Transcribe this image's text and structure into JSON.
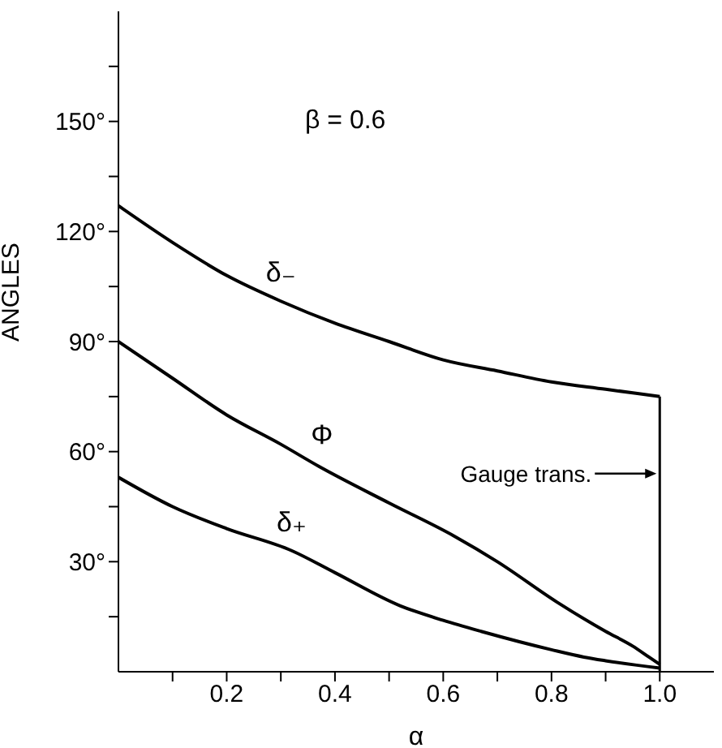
{
  "chart_data": {
    "type": "line",
    "xlabel": "α",
    "ylabel": "ANGLES",
    "xlim": [
      0,
      1.1
    ],
    "xticks": [
      {
        "value": 0.1,
        "label": null
      },
      {
        "value": 0.2,
        "label": "0.2"
      },
      {
        "value": 0.3,
        "label": null
      },
      {
        "value": 0.4,
        "label": "0.4"
      },
      {
        "value": 0.5,
        "label": null
      },
      {
        "value": 0.6,
        "label": "0.6"
      },
      {
        "value": 0.7,
        "label": null
      },
      {
        "value": 0.8,
        "label": "0.8"
      },
      {
        "value": 0.9,
        "label": null
      },
      {
        "value": 1.0,
        "label": "1.0"
      }
    ],
    "ylim": [
      0,
      180
    ],
    "yticks": [
      {
        "value": 15,
        "label": null
      },
      {
        "value": 30,
        "label": "30°"
      },
      {
        "value": 45,
        "label": null
      },
      {
        "value": 60,
        "label": "60°"
      },
      {
        "value": 75,
        "label": null
      },
      {
        "value": 90,
        "label": "90°"
      },
      {
        "value": 105,
        "label": null
      },
      {
        "value": 120,
        "label": "120°"
      },
      {
        "value": 135,
        "label": null
      },
      {
        "value": 150,
        "label": "150°"
      },
      {
        "value": 165,
        "label": null
      }
    ],
    "grid": false,
    "legend": false,
    "marker": "none",
    "line_style": "solid",
    "series": [
      {
        "name": "δ₋",
        "color": "#000000",
        "x": [
          0,
          0.1,
          0.2,
          0.3,
          0.4,
          0.5,
          0.6,
          0.7,
          0.8,
          0.9,
          1.0
        ],
        "values": [
          127,
          117,
          108,
          101,
          95,
          90,
          85,
          82,
          79,
          77,
          75
        ]
      },
      {
        "name": "Φ",
        "color": "#000000",
        "x": [
          0,
          0.1,
          0.2,
          0.3,
          0.37,
          0.5,
          0.62,
          0.7,
          0.81,
          0.9,
          0.95,
          0.98,
          1.0
        ],
        "values": [
          90,
          80,
          70,
          62,
          56,
          46,
          37,
          30,
          19,
          11,
          7,
          4,
          2
        ]
      },
      {
        "name": "δ₊",
        "color": "#000000",
        "x": [
          0,
          0.1,
          0.2,
          0.32,
          0.4,
          0.52,
          0.6,
          0.67,
          0.8,
          0.86,
          0.9,
          1.0
        ],
        "values": [
          53,
          45,
          39,
          33,
          27,
          18,
          14,
          11,
          6,
          4,
          3,
          1
        ]
      }
    ],
    "ref_lines": [
      {
        "axis": "x",
        "value": 1.0,
        "label": "Gauge trans."
      }
    ],
    "annotations": [
      "β = 0.6"
    ]
  }
}
